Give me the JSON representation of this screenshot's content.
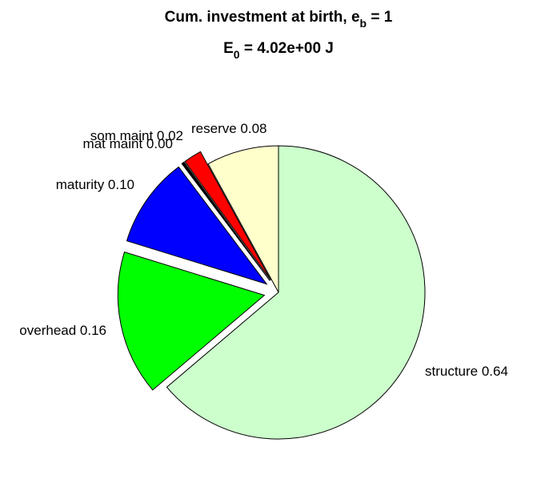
{
  "chart_data": {
    "type": "pie",
    "title_main": "Cum. investment at birth, e",
    "title_main_sub": "b",
    "title_main_tail": " = 1",
    "title_energy": "E",
    "title_energy_sub": "0",
    "title_energy_tail": " = 4.02e+00 J",
    "slices": [
      {
        "key": "structure",
        "label": "structure 0.64",
        "value": 0.64,
        "color": "#ccffcc",
        "exploded": false
      },
      {
        "key": "overhead",
        "label": "overhead 0.16",
        "value": 0.16,
        "color": "#00ff00",
        "exploded": true
      },
      {
        "key": "maturity",
        "label": "maturity 0.10",
        "value": 0.1,
        "color": "#0000ff",
        "exploded": true
      },
      {
        "key": "mat-maint",
        "label": "mat maint 0.00",
        "value": 0.003,
        "color": "#000000",
        "exploded": true
      },
      {
        "key": "som-maint",
        "label": "som maint 0.02",
        "value": 0.02,
        "color": "#ff0000",
        "exploded": true
      },
      {
        "key": "reserve",
        "label": "reserve 0.08",
        "value": 0.08,
        "color": "#ffffcc",
        "exploded": false
      }
    ]
  }
}
